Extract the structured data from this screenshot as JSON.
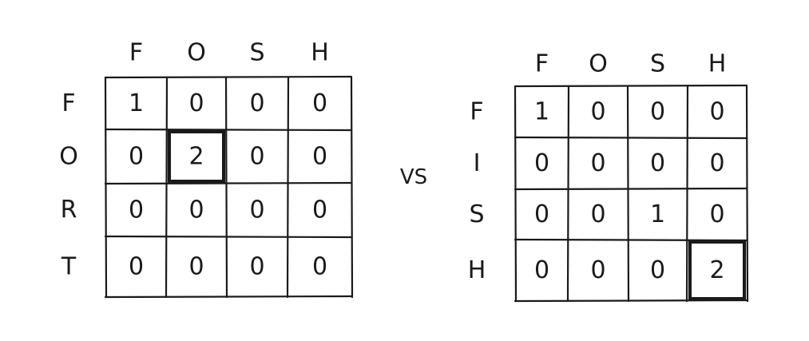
{
  "comparison_label": "VS",
  "grids": [
    {
      "column_headers": [
        "F",
        "O",
        "S",
        "H"
      ],
      "row_headers": [
        "F",
        "O",
        "R",
        "T"
      ],
      "cells": [
        [
          "1",
          "0",
          "0",
          "0"
        ],
        [
          "0",
          "2",
          "0",
          "0"
        ],
        [
          "0",
          "0",
          "0",
          "0"
        ],
        [
          "0",
          "0",
          "0",
          "0"
        ]
      ],
      "highlighted_cell": {
        "row": 1,
        "col": 1
      }
    },
    {
      "column_headers": [
        "F",
        "O",
        "S",
        "H"
      ],
      "row_headers": [
        "F",
        "I",
        "S",
        "H"
      ],
      "cells": [
        [
          "1",
          "0",
          "0",
          "0"
        ],
        [
          "0",
          "0",
          "0",
          "0"
        ],
        [
          "0",
          "0",
          "1",
          "0"
        ],
        [
          "0",
          "0",
          "0",
          "2"
        ]
      ],
      "highlighted_cell": {
        "row": 3,
        "col": 3
      }
    }
  ]
}
